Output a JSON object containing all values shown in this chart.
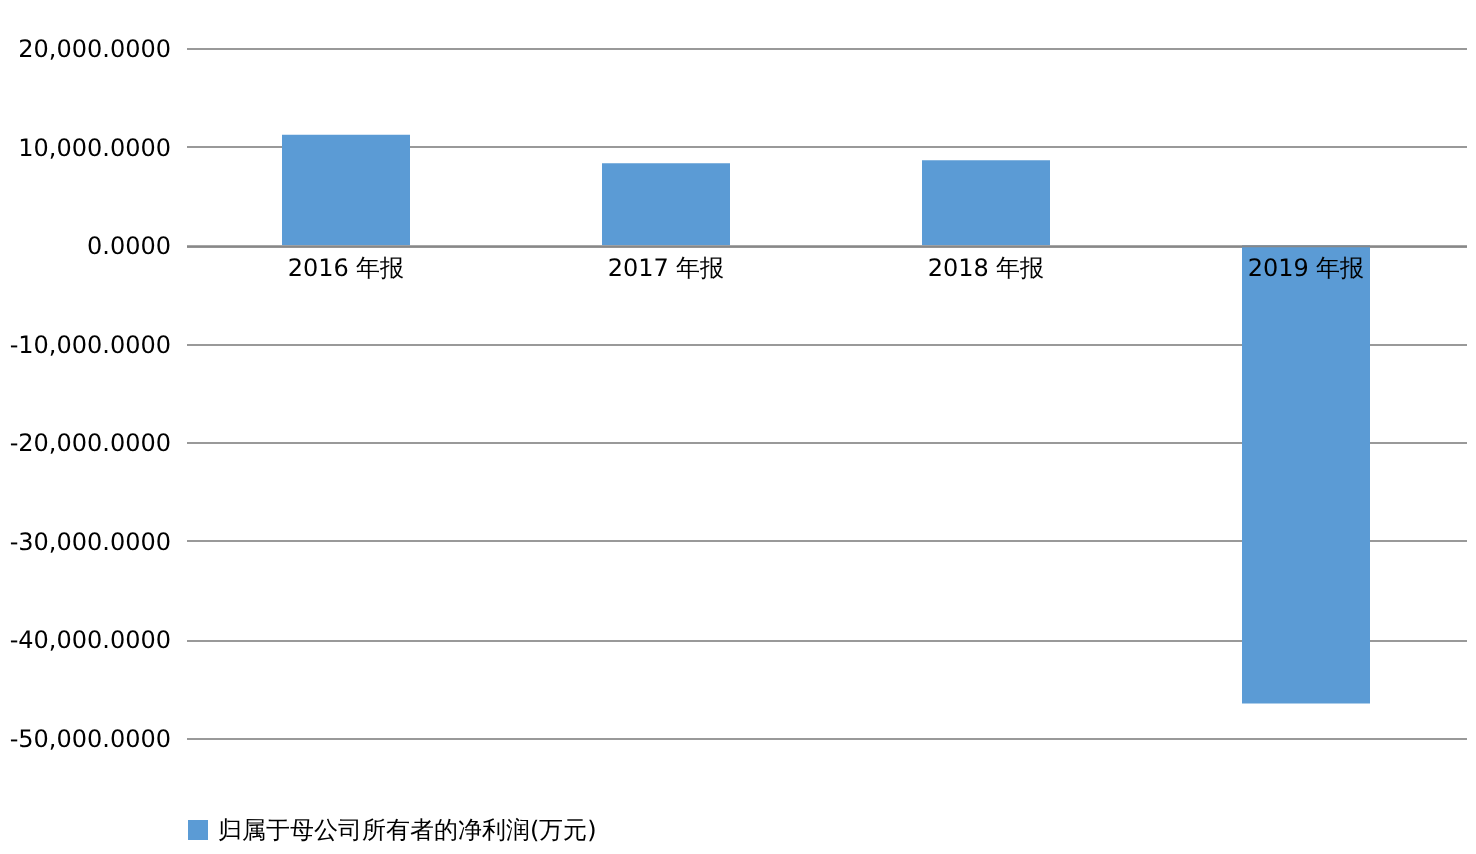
{
  "chart_data": {
    "type": "bar",
    "categories": [
      "2016 年报",
      "2017 年报",
      "2018 年报",
      "2019 年报"
    ],
    "series": [
      {
        "name": "归属于母公司所有者的净利润(万元)",
        "color": "#5b9bd5",
        "values": [
          11200,
          8300,
          8600,
          -46500
        ]
      }
    ],
    "ylim": [
      -50000,
      20000
    ],
    "yticks": [
      {
        "value": -50000,
        "label": "-50,000.0000"
      },
      {
        "value": -40000,
        "label": "-40,000.0000"
      },
      {
        "value": -30000,
        "label": "-30,000.0000"
      },
      {
        "value": -20000,
        "label": "-20,000.0000"
      },
      {
        "value": -10000,
        "label": "-10,000.0000"
      },
      {
        "value": 0,
        "label": "0.0000"
      },
      {
        "value": 10000,
        "label": "10,000.0000"
      },
      {
        "value": 20000,
        "label": "20,000.0000"
      }
    ],
    "grid": "y",
    "legend": "bottom"
  }
}
